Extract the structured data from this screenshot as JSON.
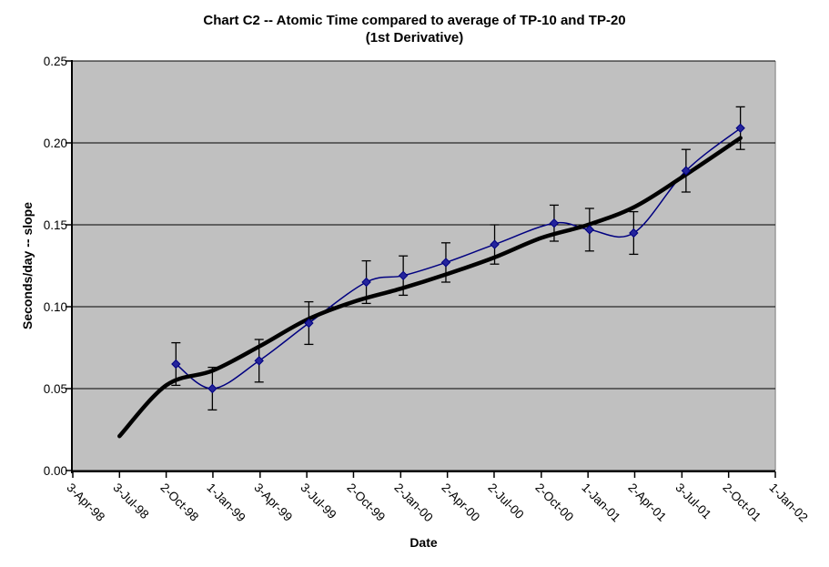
{
  "chart_data": {
    "type": "line",
    "title": "Chart C2 -- Atomic Time compared to average of TP-10 and TP-20",
    "subtitle": "(1st Derivative)",
    "xlabel": "Date",
    "ylabel": "Seconds/day -- slope",
    "ylim": [
      0,
      0.25
    ],
    "grid": true,
    "legend": "none",
    "plot_bg_color": "#c0c0c0",
    "gridline_color": "#000000",
    "axis_color": "#000000",
    "y_ticks": [
      {
        "label": "0.00",
        "value": 0.0
      },
      {
        "label": "0.05",
        "value": 0.05
      },
      {
        "label": "0.10",
        "value": 0.1
      },
      {
        "label": "0.15",
        "value": 0.15
      },
      {
        "label": "0.20",
        "value": 0.2
      },
      {
        "label": "0.25",
        "value": 0.25
      }
    ],
    "x_range_days": [
      0,
      1369
    ],
    "x_ticks": [
      {
        "label": "3-Apr-98",
        "days": 0
      },
      {
        "label": "3-Jul-98",
        "days": 91
      },
      {
        "label": "2-Oct-98",
        "days": 182
      },
      {
        "label": "1-Jan-99",
        "days": 273
      },
      {
        "label": "3-Apr-99",
        "days": 365
      },
      {
        "label": "3-Jul-99",
        "days": 456
      },
      {
        "label": "2-Oct-99",
        "days": 547
      },
      {
        "label": "2-Jan-00",
        "days": 639
      },
      {
        "label": "2-Apr-00",
        "days": 730
      },
      {
        "label": "2-Jul-00",
        "days": 821
      },
      {
        "label": "2-Oct-00",
        "days": 913
      },
      {
        "label": "1-Jan-01",
        "days": 1004
      },
      {
        "label": "2-Apr-01",
        "days": 1095
      },
      {
        "label": "3-Jul-01",
        "days": 1187
      },
      {
        "label": "2-Oct-01",
        "days": 1278
      },
      {
        "label": "1-Jan-02",
        "days": 1369
      }
    ],
    "series": [
      {
        "name": "data (smoothed navy line, diamond markers, error bars)",
        "color": "#000080",
        "marker_fill": "#24249c",
        "marker": "diamond",
        "smoothed": true,
        "line_width": 1.5,
        "points": [
          {
            "date": "21-Oct-98",
            "days": 201,
            "value": 0.065,
            "error": 0.013
          },
          {
            "date": "1-Jan-99",
            "days": 272,
            "value": 0.05,
            "error": 0.013
          },
          {
            "date": "2-Apr-99",
            "days": 363,
            "value": 0.067,
            "error": 0.013
          },
          {
            "date": "7-Jul-99",
            "days": 460,
            "value": 0.09,
            "error": 0.013
          },
          {
            "date": "27-Oct-99",
            "days": 572,
            "value": 0.115,
            "error": 0.013
          },
          {
            "date": "7-Jan-00",
            "days": 644,
            "value": 0.119,
            "error": 0.012
          },
          {
            "date": "31-Mar-00",
            "days": 727,
            "value": 0.127,
            "error": 0.012
          },
          {
            "date": "3-Jul-00",
            "days": 822,
            "value": 0.138,
            "error": 0.012
          },
          {
            "date": "27-Oct-00",
            "days": 938,
            "value": 0.151,
            "error": 0.011
          },
          {
            "date": "4-Jan-01",
            "days": 1007,
            "value": 0.147,
            "error": 0.013
          },
          {
            "date": "31-Mar-01",
            "days": 1093,
            "value": 0.145,
            "error": 0.013
          },
          {
            "date": "11-Jul-01",
            "days": 1195,
            "value": 0.183,
            "error": 0.013
          },
          {
            "date": "25-Oct-01",
            "days": 1301,
            "value": 0.209,
            "error": 0.013
          }
        ]
      },
      {
        "name": "trend (thick black smooth curve)",
        "color": "#000000",
        "marker": "none",
        "smoothed": true,
        "line_width": 4.5,
        "points": [
          {
            "date": "3-Jul-98",
            "days": 91,
            "value": 0.021
          },
          {
            "date": "2-Oct-98",
            "days": 182,
            "value": 0.052
          },
          {
            "date": "1-Jan-99",
            "days": 273,
            "value": 0.061
          },
          {
            "date": "3-Apr-99",
            "days": 365,
            "value": 0.076
          },
          {
            "date": "3-Jul-99",
            "days": 456,
            "value": 0.092
          },
          {
            "date": "2-Oct-99",
            "days": 547,
            "value": 0.103
          },
          {
            "date": "2-Jan-00",
            "days": 639,
            "value": 0.111
          },
          {
            "date": "2-Apr-00",
            "days": 730,
            "value": 0.12
          },
          {
            "date": "2-Jul-00",
            "days": 821,
            "value": 0.13
          },
          {
            "date": "2-Oct-00",
            "days": 913,
            "value": 0.142
          },
          {
            "date": "1-Jan-01",
            "days": 1004,
            "value": 0.15
          },
          {
            "date": "2-Apr-01",
            "days": 1095,
            "value": 0.161
          },
          {
            "date": "3-Jul-01",
            "days": 1187,
            "value": 0.179
          },
          {
            "date": "25-Oct-01",
            "days": 1301,
            "value": 0.203
          }
        ]
      }
    ]
  }
}
